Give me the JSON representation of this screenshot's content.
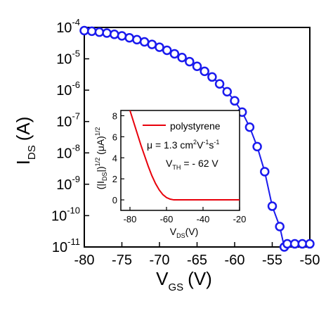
{
  "chart_data": [
    {
      "type": "scatter",
      "xlabel": "V",
      "xlabel_sub": "GS",
      "xlabel_unit": "(V)",
      "ylabel": "I",
      "ylabel_sub": "DS",
      "ylabel_unit": "(A)",
      "yscale": "log",
      "xlim": [
        -80,
        -50
      ],
      "ylim_log10": [
        -11,
        -4
      ],
      "x_ticks": [
        -80,
        -75,
        -70,
        -65,
        -60,
        -55,
        -50
      ],
      "y_ticks_exp": [
        -11,
        -10,
        -9,
        -8,
        -7,
        -6,
        -5,
        -4
      ],
      "y_tick_base": "10",
      "marker_color": "#1a1aee",
      "series": [
        {
          "x": [
            -80,
            -79,
            -78,
            -77,
            -76,
            -75,
            -74,
            -73,
            -72,
            -71,
            -70,
            -69,
            -68,
            -67,
            -66,
            -65,
            -64,
            -63,
            -62,
            -61,
            -60,
            -59,
            -58,
            -57,
            -56,
            -55,
            -54,
            -53.4,
            -53,
            -52,
            -51,
            -50
          ],
          "log10_y": [
            -4.1,
            -4.12,
            -4.15,
            -4.18,
            -4.22,
            -4.27,
            -4.33,
            -4.39,
            -4.46,
            -4.54,
            -4.63,
            -4.73,
            -4.84,
            -4.96,
            -5.09,
            -5.24,
            -5.4,
            -5.58,
            -5.8,
            -6.05,
            -6.34,
            -6.7,
            -7.18,
            -7.8,
            -8.6,
            -9.7,
            -10.35,
            -11.0,
            -10.9,
            -10.9,
            -10.9,
            -10.9
          ]
        }
      ]
    },
    {
      "type": "line",
      "xlabel": "V",
      "xlabel_sub": "DS",
      "xlabel_unit": "(V)",
      "ylabel_parts": [
        "(|I",
        "DS",
        "|)",
        "1/2",
        " (μA)",
        "1/2"
      ],
      "xlim": [
        -85,
        -20
      ],
      "ylim": [
        -1,
        8.5
      ],
      "x_ticks": [
        -80,
        -60,
        -40,
        -20
      ],
      "y_ticks": [
        0,
        2,
        4,
        6,
        8
      ],
      "line_color": "#e8000b",
      "series": [
        {
          "name": "polystyrene",
          "x": [
            -80,
            -78,
            -76,
            -74,
            -72,
            -70,
            -68,
            -66,
            -64,
            -62,
            -60,
            -58,
            -56,
            -54,
            -50,
            -40,
            -30,
            -20
          ],
          "y": [
            8.5,
            7.4,
            6.3,
            5.2,
            4.2,
            3.2,
            2.3,
            1.55,
            0.95,
            0.5,
            0.22,
            0.07,
            0.0,
            0.0,
            0.0,
            0.0,
            0.0,
            0.0
          ]
        }
      ],
      "annotations": {
        "mobility_prefix": "μ = 1.3 cm",
        "mobility_exp1": "2",
        "mobility_mid": "V",
        "mobility_exp2": "-1",
        "mobility_s": "s",
        "mobility_exp3": "-1",
        "vth_main": "V",
        "vth_sub": "TH",
        "vth_value": "= - 62 V"
      }
    }
  ]
}
